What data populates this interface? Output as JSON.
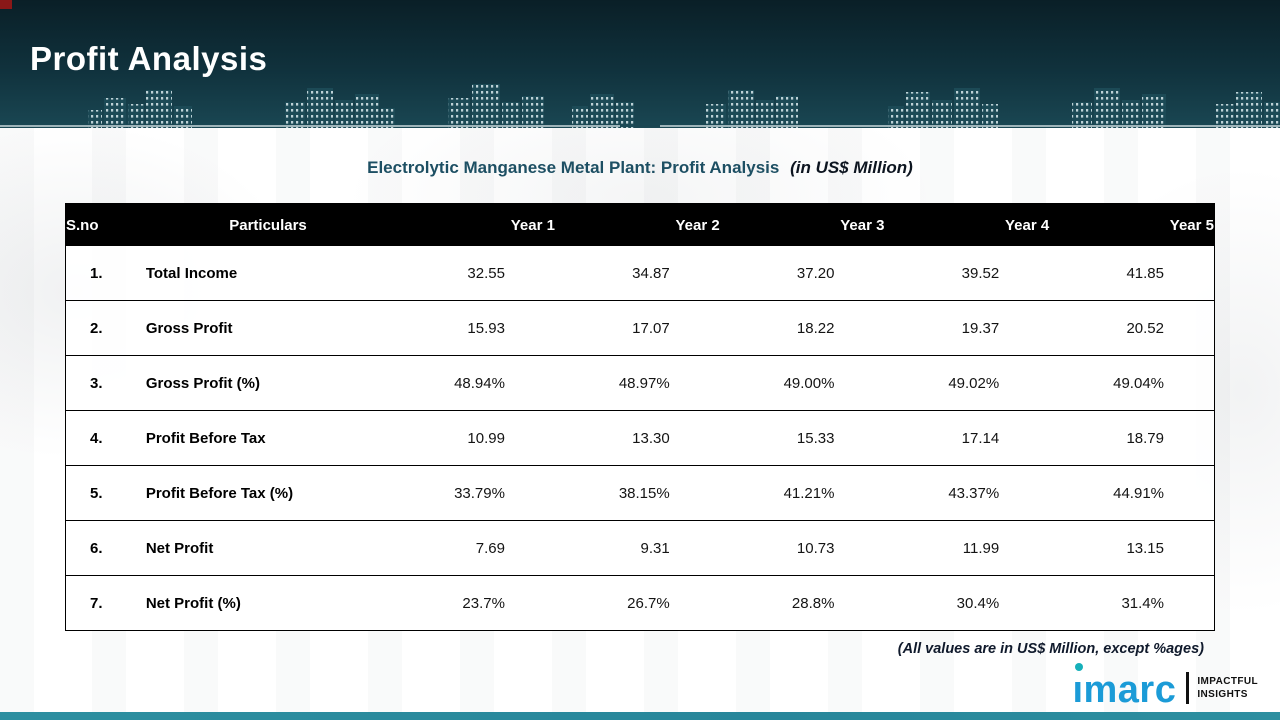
{
  "banner": {
    "title": "Profit Analysis"
  },
  "table_title": {
    "main": "Electrolytic Manganese Metal Plant: Profit Analysis",
    "suffix": "(in US$ Million)"
  },
  "table": {
    "columns": [
      "S.no",
      "Particulars",
      "Year 1",
      "Year 2",
      "Year 3",
      "Year 4",
      "Year 5"
    ],
    "rows": [
      {
        "sno": "1.",
        "particulars": "Total Income",
        "values": [
          "32.55",
          "34.87",
          "37.20",
          "39.52",
          "41.85"
        ]
      },
      {
        "sno": "2.",
        "particulars": "Gross Profit",
        "values": [
          "15.93",
          "17.07",
          "18.22",
          "19.37",
          "20.52"
        ]
      },
      {
        "sno": "3.",
        "particulars": "Gross Profit (%)",
        "values": [
          "48.94%",
          "48.97%",
          "49.00%",
          "49.02%",
          "49.04%"
        ]
      },
      {
        "sno": "4.",
        "particulars": "Profit Before Tax",
        "values": [
          "10.99",
          "13.30",
          "15.33",
          "17.14",
          "18.79"
        ]
      },
      {
        "sno": "5.",
        "particulars": "Profit Before Tax (%)",
        "values": [
          "33.79%",
          "38.15%",
          "41.21%",
          "43.37%",
          "44.91%"
        ]
      },
      {
        "sno": "6.",
        "particulars": "Net Profit",
        "values": [
          "7.69",
          "9.31",
          "10.73",
          "11.99",
          "13.15"
        ]
      },
      {
        "sno": "7.",
        "particulars": "Net Profit (%)",
        "values": [
          "23.7%",
          "26.7%",
          "28.8%",
          "30.4%",
          "31.4%"
        ]
      }
    ]
  },
  "footnote": "(All values are in US$ Million, except %ages)",
  "logo": {
    "wordmark": "imarc",
    "tagline_line1": "IMPACTFUL",
    "tagline_line2": "INSIGHTS"
  },
  "colors": {
    "banner_bg": "#10323d",
    "accent_teal": "#2d8fa0",
    "logo_blue": "#1b9bd7",
    "logo_dot": "#16b0ba",
    "title_color": "#1d4f63"
  }
}
